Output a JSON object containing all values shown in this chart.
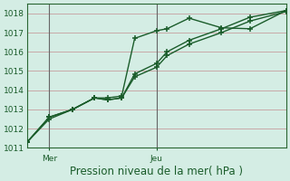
{
  "title": "Pression niveau de la mer( hPa )",
  "bg_color": "#d4ede4",
  "plot_bg_color": "#d4ede4",
  "grid_color": "#c8a8a8",
  "line_color": "#1a5c2a",
  "ylim": [
    1011,
    1018.5
  ],
  "yticks": [
    1011,
    1012,
    1013,
    1014,
    1015,
    1016,
    1017,
    1018
  ],
  "day_labels": [
    "Mer",
    "Jeu"
  ],
  "vline_positions": [
    0.17,
    1.0
  ],
  "line1_x": [
    0.0,
    0.17,
    0.35,
    0.52,
    0.62,
    0.73,
    0.83,
    1.0,
    1.08,
    1.25,
    1.5,
    1.72,
    2.0
  ],
  "line1_y": [
    1011.3,
    1012.6,
    1013.0,
    1013.6,
    1013.6,
    1013.7,
    1016.7,
    1017.1,
    1017.2,
    1017.75,
    1017.25,
    1017.2,
    1018.15
  ],
  "line2_x": [
    0.0,
    0.17,
    0.35,
    0.52,
    0.62,
    0.73,
    0.83,
    1.0,
    1.08,
    1.25,
    1.5,
    1.72,
    2.0
  ],
  "line2_y": [
    1011.3,
    1012.6,
    1013.0,
    1013.6,
    1013.5,
    1013.6,
    1014.85,
    1015.4,
    1016.0,
    1016.6,
    1017.2,
    1017.8,
    1018.15
  ],
  "line3_x": [
    0.0,
    0.17,
    0.35,
    0.52,
    0.62,
    0.73,
    0.83,
    1.0,
    1.08,
    1.25,
    1.5,
    1.72,
    2.0
  ],
  "line3_y": [
    1011.3,
    1012.5,
    1013.0,
    1013.6,
    1013.5,
    1013.6,
    1014.7,
    1015.2,
    1015.8,
    1016.4,
    1017.0,
    1017.6,
    1018.1
  ],
  "marker_size": 4.0,
  "linewidth": 1.0,
  "vline_color": "#666666",
  "tick_fontsize": 6.5,
  "label_fontsize": 8.5,
  "spine_color": "#2a6632"
}
